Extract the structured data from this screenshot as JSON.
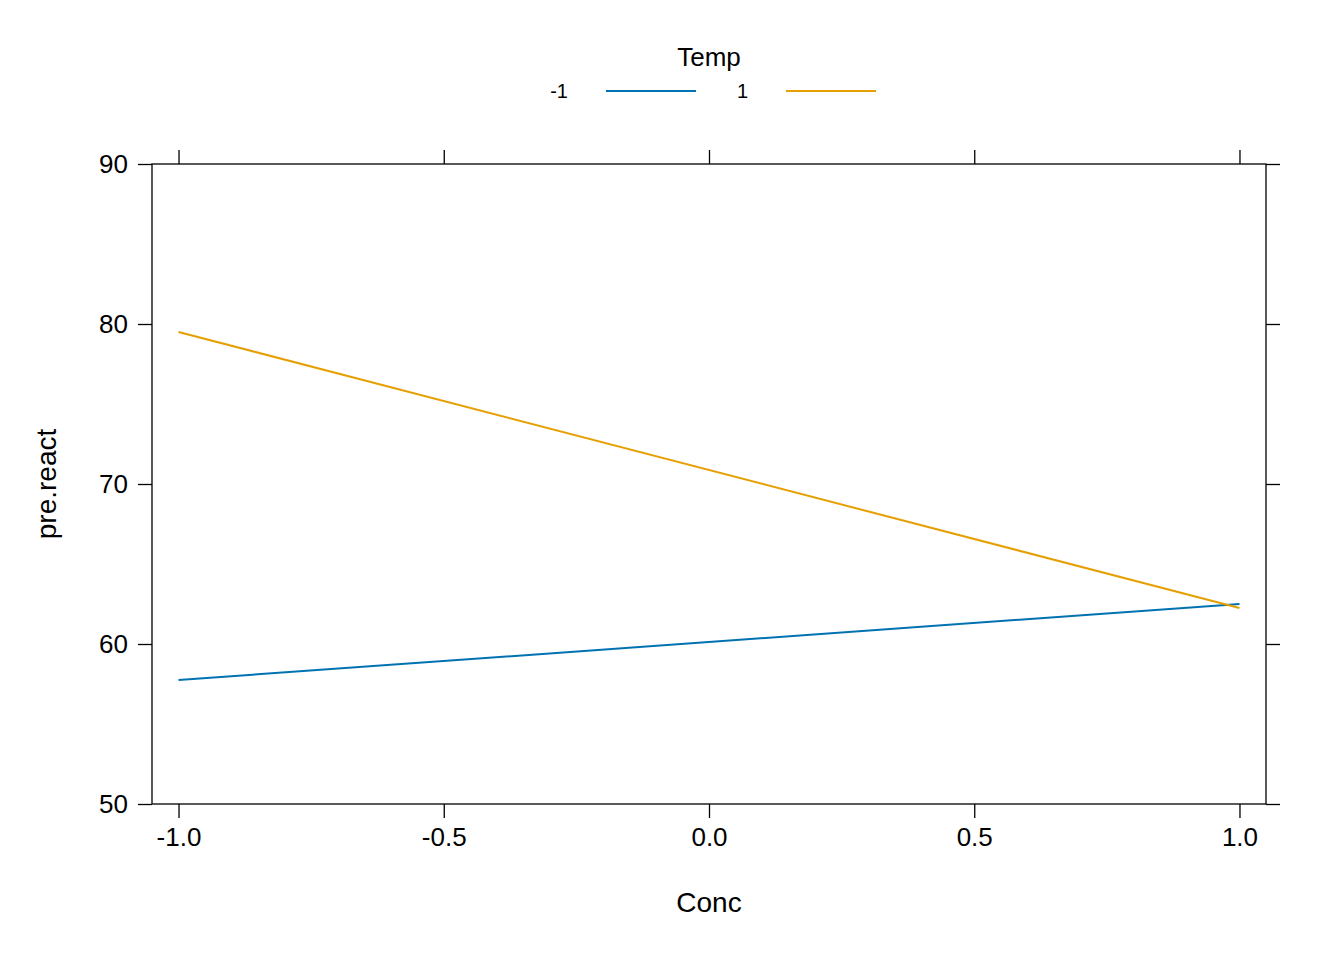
{
  "chart_data": {
    "type": "line",
    "x_label": "Conc",
    "y_label": "pre.react",
    "legend_title": "Temp",
    "legend": "top",
    "x": [
      -1,
      1
    ],
    "series": [
      {
        "name": "-1",
        "color": "#0072B2",
        "values": [
          57.75,
          62.5
        ]
      },
      {
        "name": "1",
        "color": "#E69F00",
        "values": [
          79.5,
          62.25
        ]
      }
    ],
    "xlim": [
      -1.05,
      1.05
    ],
    "xticks": [
      {
        "value": -1,
        "label": "-1.0"
      },
      -0.5,
      {
        "value": 0,
        "label": "0.0"
      },
      0.5,
      {
        "value": 1,
        "label": "1.0"
      }
    ],
    "ylim": [
      50,
      90
    ],
    "yticks": [
      50,
      60,
      70,
      80,
      90
    ]
  }
}
